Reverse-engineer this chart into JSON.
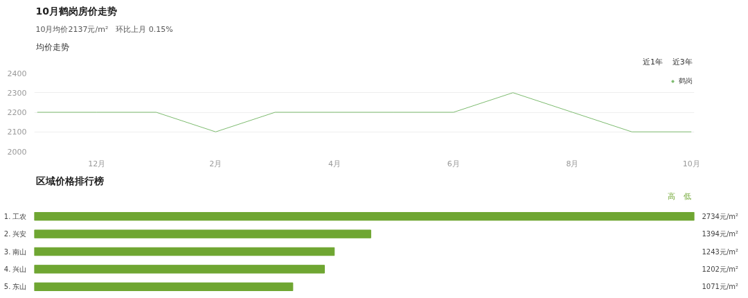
{
  "chart_data": [
    {
      "type": "line",
      "title": "10月鹤岗房价走势",
      "subtitle": "10月均价2137元/m²　环比上月 0.15%",
      "annotations": [
        "均价走势",
        "近1年",
        "近3年"
      ],
      "categories": [
        null,
        "12月",
        null,
        "2月",
        null,
        "4月",
        null,
        "6月",
        null,
        "8月",
        null,
        "10月"
      ],
      "series": [
        {
          "name": "鹤岗",
          "color": "#7dbb6f",
          "values": [
            2200,
            2200,
            2200,
            2100,
            2200,
            2200,
            2200,
            2200,
            2300,
            2200,
            2100,
            2100
          ]
        }
      ],
      "ylim": [
        2000,
        2400
      ],
      "yticks": [
        2000,
        2100,
        2200,
        2300,
        2400
      ],
      "grid": "y",
      "legend": "top right",
      "marker": "none",
      "line_style": "solid"
    },
    {
      "type": "bar",
      "orientation": "horizontal",
      "title": "区域价格排行榜",
      "annotations": [
        "高",
        "低"
      ],
      "categories": [
        "1. 工农",
        "2. 兴安",
        "3. 南山",
        "4. 兴山",
        "5. 东山"
      ],
      "values": [
        2734,
        1394,
        1243,
        1202,
        1071
      ],
      "value_labels": [
        "2734元/m²",
        "1394元/m²",
        "1243元/m²",
        "1202元/m²",
        "1071元/m²"
      ],
      "color": "#6fa632"
    }
  ]
}
